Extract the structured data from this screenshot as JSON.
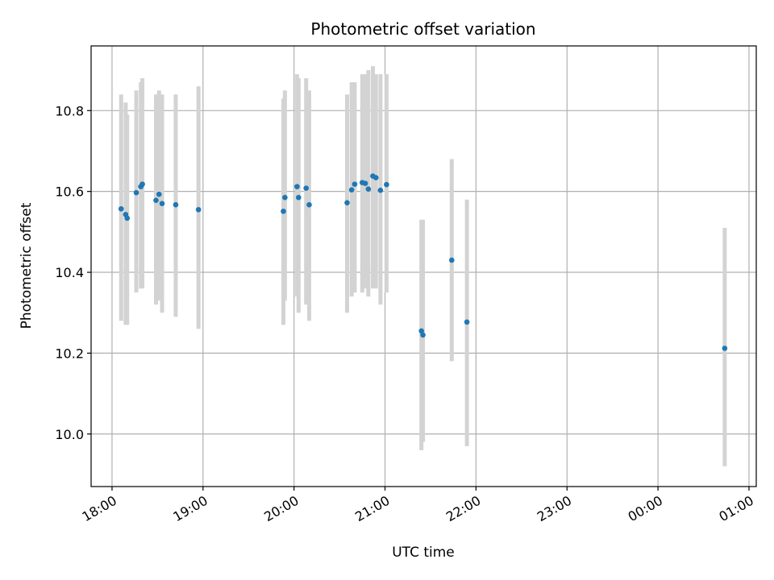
{
  "chart_data": {
    "type": "scatter",
    "title": "Photometric offset variation",
    "xlabel": "UTC time",
    "ylabel": "Photometric offset",
    "grid": true,
    "x_tick_labels": [
      "18:00",
      "19:00",
      "20:00",
      "21:00",
      "22:00",
      "23:00",
      "00:00",
      "01:00"
    ],
    "x_tick_hours": [
      18,
      19,
      20,
      21,
      22,
      23,
      24,
      25
    ],
    "y_tick_labels": [
      "10.0",
      "10.2",
      "10.4",
      "10.6",
      "10.8"
    ],
    "y_tick_values": [
      10.0,
      10.2,
      10.4,
      10.6,
      10.8
    ],
    "xlim": [
      17.77,
      25.08
    ],
    "ylim": [
      9.87,
      10.96
    ],
    "colors": {
      "points": "#1f77b4",
      "error_bars": "#d3d3d3",
      "grid": "#b0b0b0"
    },
    "x": [
      "18:06",
      "18:09",
      "18:10",
      "18:16",
      "18:19",
      "18:20",
      "18:29",
      "18:31",
      "18:33",
      "18:42",
      "18:57",
      "19:53",
      "19:54",
      "20:02",
      "20:03",
      "20:08",
      "20:10",
      "20:35",
      "20:38",
      "20:40",
      "20:45",
      "20:47",
      "20:49",
      "20:52",
      "20:54",
      "20:57",
      "21:01",
      "21:24",
      "21:25",
      "21:44",
      "21:54",
      "00:44"
    ],
    "y": [
      10.557,
      10.543,
      10.534,
      10.597,
      10.612,
      10.618,
      10.578,
      10.593,
      10.57,
      10.567,
      10.555,
      10.551,
      10.585,
      10.612,
      10.585,
      10.608,
      10.567,
      10.572,
      10.604,
      10.618,
      10.622,
      10.62,
      10.606,
      10.638,
      10.634,
      10.603,
      10.617,
      10.255,
      10.245,
      10.43,
      10.277,
      10.212
    ],
    "err_low": [
      10.28,
      10.27,
      10.27,
      10.35,
      10.36,
      10.36,
      10.32,
      10.33,
      10.3,
      10.29,
      10.26,
      10.27,
      10.33,
      10.34,
      10.3,
      10.32,
      10.28,
      10.3,
      10.34,
      10.35,
      10.35,
      10.36,
      10.34,
      10.36,
      10.36,
      10.32,
      10.35,
      9.96,
      9.98,
      10.18,
      9.97,
      9.92
    ],
    "err_high": [
      10.84,
      10.82,
      10.79,
      10.85,
      10.87,
      10.88,
      10.84,
      10.85,
      10.84,
      10.84,
      10.86,
      10.83,
      10.85,
      10.89,
      10.88,
      10.88,
      10.85,
      10.84,
      10.87,
      10.87,
      10.89,
      10.89,
      10.9,
      10.91,
      10.89,
      10.89,
      10.89,
      10.53,
      10.53,
      10.68,
      10.58,
      10.51
    ]
  }
}
